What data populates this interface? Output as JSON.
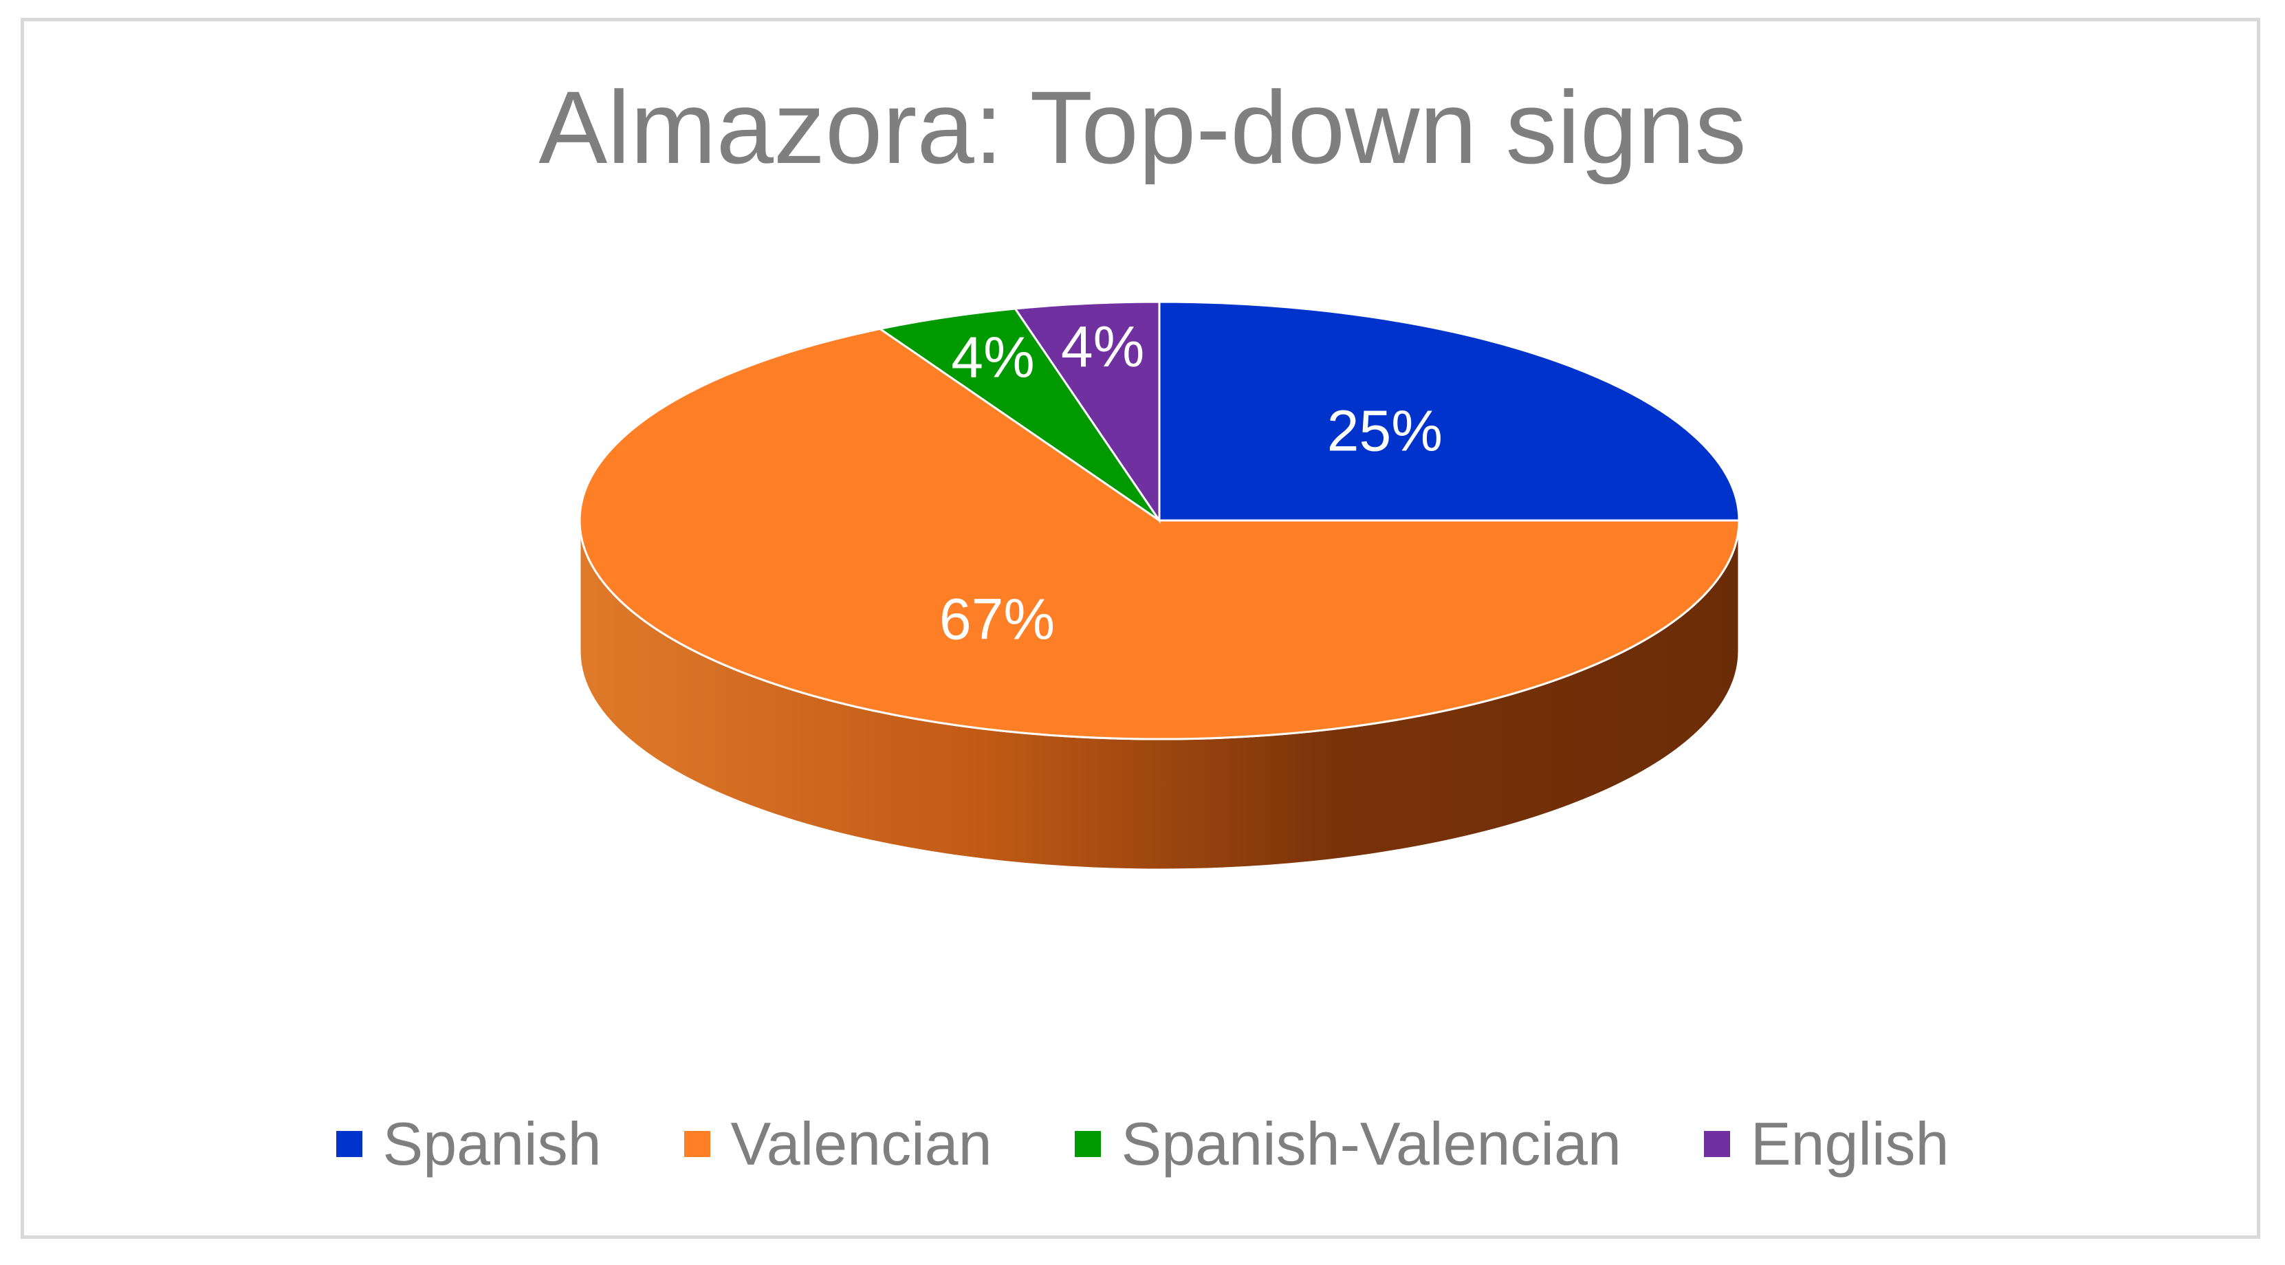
{
  "chart_data": {
    "type": "pie",
    "style": "3d",
    "title": "Almazora: Top-down signs",
    "categories": [
      "Spanish",
      "Valencian",
      "Spanish-Valencian",
      "English"
    ],
    "values": [
      25,
      67,
      4,
      4
    ],
    "labels": [
      "25%",
      "67%",
      "4%",
      "4%"
    ],
    "colors": [
      "#0033cc",
      "#ff7f27",
      "#009900",
      "#7030a0"
    ],
    "start_angle_deg": 90,
    "direction": "clockwise",
    "legend_position": "bottom"
  }
}
